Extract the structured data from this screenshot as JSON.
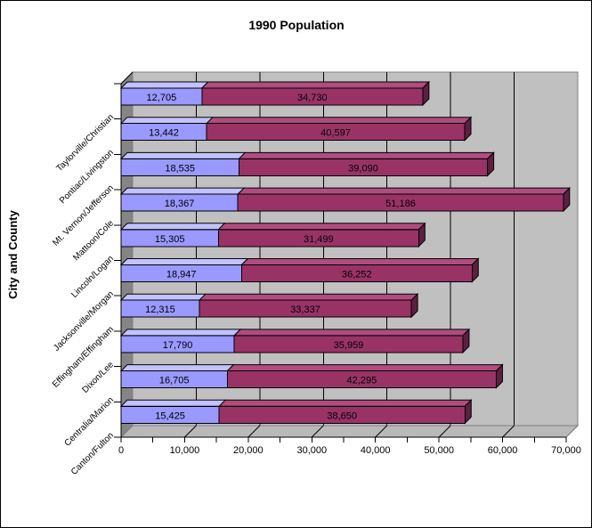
{
  "window": {
    "background": "#FFFFFF",
    "border_color": "#000000"
  },
  "chart_data": {
    "type": "bar",
    "variant": "3d-horizontal-stacked",
    "title": "1990 Population",
    "xlabel": "",
    "ylabel": "City and County",
    "grid": true,
    "legend": false,
    "categories_top_to_bottom": [
      "Taylorville/Christian",
      "Pontiac/Livingston",
      "Mt. Vernon/Jefferson",
      "Mattoon/Cole",
      "Lincoln/Logan",
      "Jacksonville/Morgan",
      "Effingham/Effingham",
      "Dixon/Lee",
      "Centralia/Marion",
      "Canton/Fulton"
    ],
    "series": [
      {
        "color": "#9999FF",
        "color_top": "#C2C2FF",
        "color_side": "#6868C8",
        "values": [
          12705,
          13442,
          18535,
          18367,
          15305,
          18947,
          12315,
          17790,
          16705,
          15425
        ],
        "labels": [
          "12,705",
          "13,442",
          "18,535",
          "18,367",
          "15,305",
          "18,947",
          "12,315",
          "17,790",
          "16,705",
          "15,425"
        ]
      },
      {
        "color": "#993366",
        "color_top": "#B04C7E",
        "color_side": "#5E1F40",
        "values": [
          34730,
          40597,
          39090,
          51186,
          31499,
          36252,
          33337,
          35959,
          42295,
          38650
        ],
        "labels": [
          "34,730",
          "40,597",
          "39,090",
          "51,186",
          "31,499",
          "36,252",
          "33,337",
          "35,959",
          "42,295",
          "38,650"
        ]
      }
    ],
    "x_axis": {
      "min": 0,
      "max": 70000,
      "major_step": 10000,
      "minor_step": 5000,
      "tick_labels": [
        "0",
        "10,000",
        "20,000",
        "30,000",
        "40,000",
        "50,000",
        "60,000",
        "70,000"
      ]
    },
    "colors": {
      "back_wall": "#C0C0C0",
      "side_wall": "#858585",
      "floor": "#B9B9B9",
      "wall_border": "#808080",
      "gridline": "#000000"
    }
  }
}
